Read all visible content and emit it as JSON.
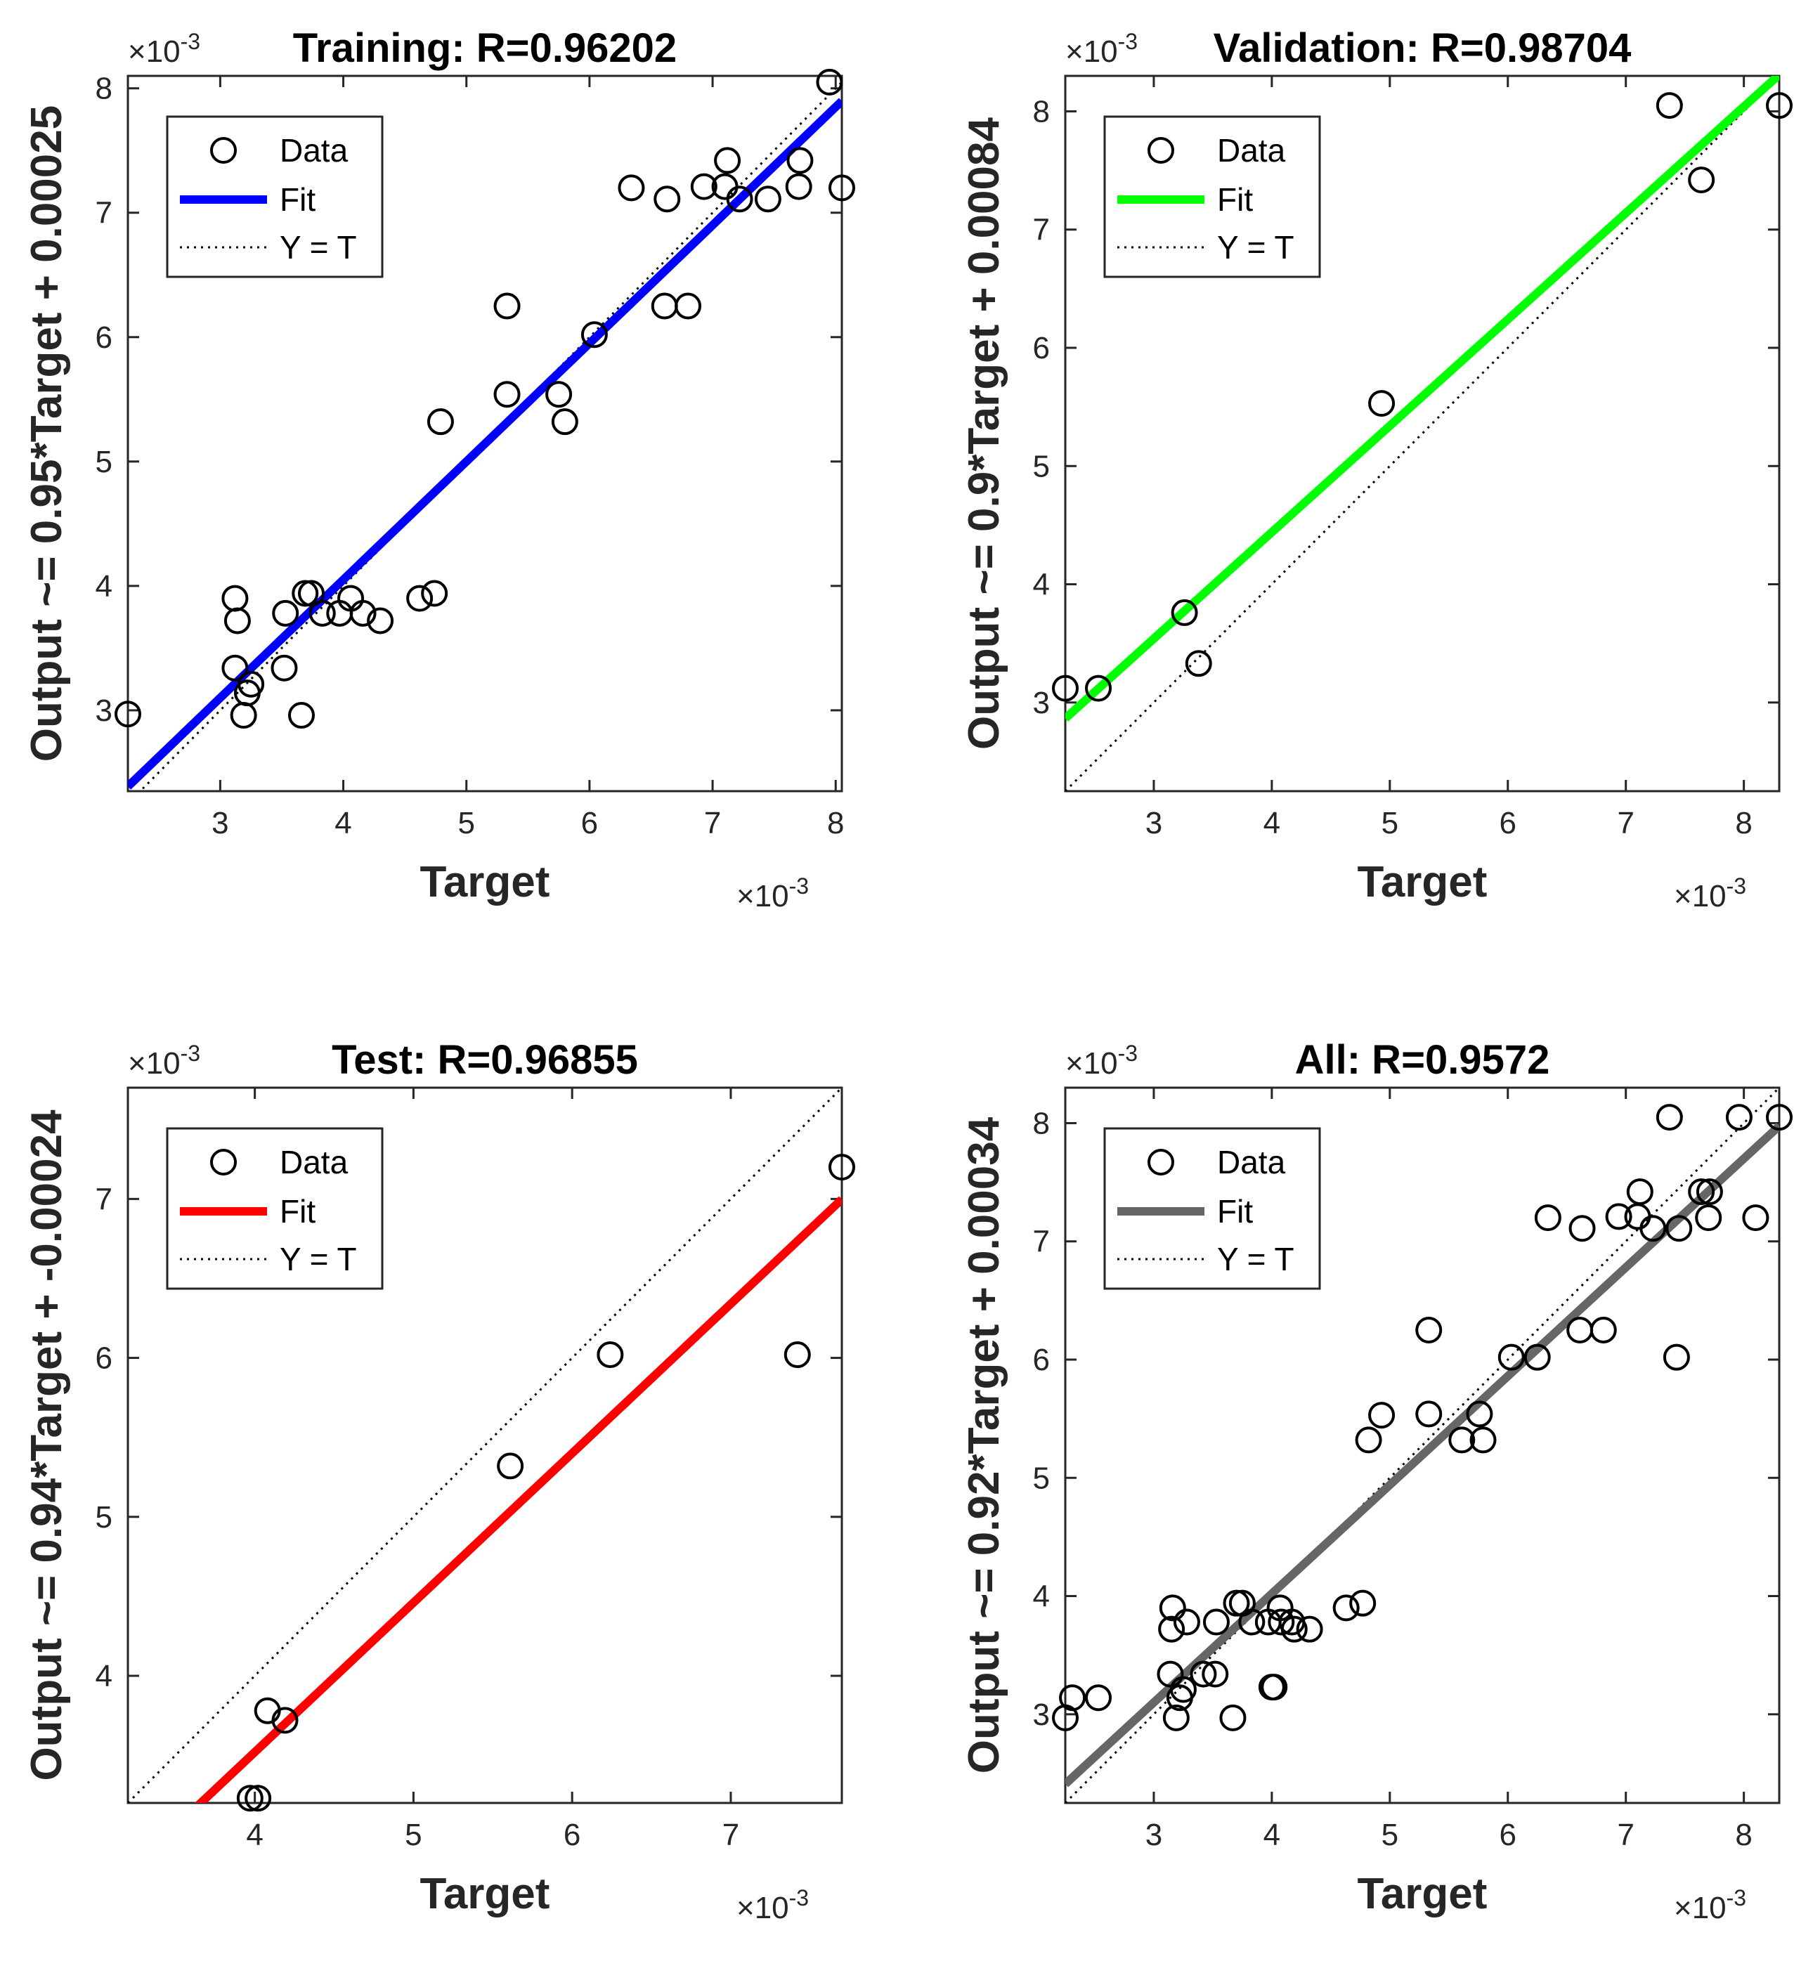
{
  "chart_data": [
    {
      "type": "scatter",
      "title": "Training: R=0.96202",
      "xlabel": "Target",
      "ylabel": "Output ~= 0.95*Target + 0.00025",
      "exponent_label": "×10",
      "exponent_power": "-3",
      "xlim": [
        2.25,
        8.05
      ],
      "ylim": [
        2.35,
        8.1
      ],
      "xticks": [
        3,
        4,
        5,
        6,
        7,
        8
      ],
      "yticks": [
        3,
        4,
        5,
        6,
        7,
        8
      ],
      "fit_color": "#0000ff",
      "fit": {
        "slope": 0.95,
        "intercept": 0.25
      },
      "legend": {
        "position": "top-left",
        "data": "Data",
        "fit": "Fit",
        "identity": "Y = T"
      },
      "points": [
        [
          2.25,
          2.97
        ],
        [
          3.12,
          3.34
        ],
        [
          3.12,
          3.9
        ],
        [
          3.14,
          3.72
        ],
        [
          3.19,
          2.96
        ],
        [
          3.22,
          3.14
        ],
        [
          3.25,
          3.21
        ],
        [
          3.52,
          3.34
        ],
        [
          3.53,
          3.78
        ],
        [
          3.66,
          2.96
        ],
        [
          3.69,
          3.94
        ],
        [
          3.74,
          3.94
        ],
        [
          3.83,
          3.78
        ],
        [
          3.97,
          3.78
        ],
        [
          4.06,
          3.9
        ],
        [
          4.16,
          3.78
        ],
        [
          4.3,
          3.72
        ],
        [
          4.62,
          3.9
        ],
        [
          4.74,
          3.94
        ],
        [
          4.79,
          5.32
        ],
        [
          5.33,
          5.54
        ],
        [
          5.33,
          6.25
        ],
        [
          5.75,
          5.54
        ],
        [
          5.8,
          5.32
        ],
        [
          6.04,
          6.02
        ],
        [
          6.34,
          7.2
        ],
        [
          6.61,
          6.25
        ],
        [
          6.63,
          7.11
        ],
        [
          6.8,
          6.25
        ],
        [
          6.93,
          7.21
        ],
        [
          7.1,
          7.21
        ],
        [
          7.12,
          7.42
        ],
        [
          7.22,
          7.11
        ],
        [
          7.45,
          7.11
        ],
        [
          7.7,
          7.21
        ],
        [
          7.71,
          7.42
        ],
        [
          7.95,
          8.05
        ],
        [
          8.05,
          7.2
        ]
      ]
    },
    {
      "type": "scatter",
      "title": "Validation: R=0.98704",
      "xlabel": "Target",
      "ylabel": "Output ~= 0.9*Target + 0.00084",
      "exponent_label": "×10",
      "exponent_power": "-3",
      "xlim": [
        2.25,
        8.3
      ],
      "ylim": [
        2.25,
        8.3
      ],
      "xticks": [
        3,
        4,
        5,
        6,
        7,
        8
      ],
      "yticks": [
        3,
        4,
        5,
        6,
        7,
        8
      ],
      "fit_color": "#00ff00",
      "fit": {
        "slope": 0.9,
        "intercept": 0.84
      },
      "legend": {
        "position": "top-left",
        "data": "Data",
        "fit": "Fit",
        "identity": "Y = T"
      },
      "points": [
        [
          2.25,
          3.12
        ],
        [
          2.53,
          3.12
        ],
        [
          3.26,
          3.76
        ],
        [
          3.38,
          3.33
        ],
        [
          4.93,
          5.53
        ],
        [
          7.37,
          8.05
        ],
        [
          7.64,
          7.42
        ],
        [
          8.3,
          8.05
        ]
      ]
    },
    {
      "type": "scatter",
      "title": "Test: R=0.96855",
      "xlabel": "Target",
      "ylabel": "Output ~= 0.94*Target + -0.00024",
      "exponent_label": "×10",
      "exponent_power": "-3",
      "xlim": [
        3.2,
        7.7
      ],
      "ylim": [
        3.2,
        7.7
      ],
      "xticks": [
        4,
        5,
        6,
        7
      ],
      "yticks": [
        4,
        5,
        6,
        7
      ],
      "fit_color": "#ff0000",
      "fit": {
        "slope": 0.94,
        "intercept": -0.24
      },
      "legend": {
        "position": "top-left",
        "data": "Data",
        "fit": "Fit",
        "identity": "Y = T"
      },
      "points": [
        [
          3.97,
          3.23
        ],
        [
          4.02,
          3.23
        ],
        [
          4.08,
          3.78
        ],
        [
          4.19,
          3.72
        ],
        [
          5.61,
          5.32
        ],
        [
          6.24,
          6.02
        ],
        [
          7.42,
          6.02
        ],
        [
          7.7,
          7.2
        ]
      ]
    },
    {
      "type": "scatter",
      "title": "All: R=0.9572",
      "xlabel": "Target",
      "ylabel": "Output ~= 0.92*Target + 0.00034",
      "exponent_label": "×10",
      "exponent_power": "-3",
      "xlim": [
        2.25,
        8.3
      ],
      "ylim": [
        2.25,
        8.3
      ],
      "xticks": [
        3,
        4,
        5,
        6,
        7,
        8
      ],
      "yticks": [
        3,
        4,
        5,
        6,
        7,
        8
      ],
      "fit_color": "#666666",
      "fit": {
        "slope": 0.92,
        "intercept": 0.34
      },
      "legend": {
        "position": "top-left",
        "data": "Data",
        "fit": "Fit",
        "identity": "Y = T"
      },
      "points": [
        [
          2.25,
          2.97
        ],
        [
          2.31,
          3.14
        ],
        [
          2.53,
          3.14
        ],
        [
          3.14,
          3.34
        ],
        [
          3.15,
          3.72
        ],
        [
          3.16,
          3.9
        ],
        [
          3.19,
          2.97
        ],
        [
          3.22,
          3.14
        ],
        [
          3.25,
          3.21
        ],
        [
          3.28,
          3.78
        ],
        [
          3.42,
          3.34
        ],
        [
          3.52,
          3.34
        ],
        [
          3.53,
          3.78
        ],
        [
          3.67,
          2.97
        ],
        [
          3.7,
          3.94
        ],
        [
          3.75,
          3.94
        ],
        [
          3.83,
          3.78
        ],
        [
          3.97,
          3.78
        ],
        [
          4.0,
          3.23
        ],
        [
          4.02,
          3.23
        ],
        [
          4.07,
          3.9
        ],
        [
          4.08,
          3.78
        ],
        [
          4.17,
          3.78
        ],
        [
          4.19,
          3.72
        ],
        [
          4.32,
          3.72
        ],
        [
          4.63,
          3.9
        ],
        [
          4.77,
          3.94
        ],
        [
          4.82,
          5.32
        ],
        [
          4.93,
          5.53
        ],
        [
          5.33,
          5.54
        ],
        [
          5.33,
          6.25
        ],
        [
          5.61,
          5.32
        ],
        [
          5.76,
          5.54
        ],
        [
          5.79,
          5.32
        ],
        [
          6.03,
          6.02
        ],
        [
          6.25,
          6.02
        ],
        [
          6.34,
          7.2
        ],
        [
          6.61,
          6.25
        ],
        [
          6.63,
          7.11
        ],
        [
          6.81,
          6.25
        ],
        [
          6.94,
          7.21
        ],
        [
          7.1,
          7.21
        ],
        [
          7.12,
          7.42
        ],
        [
          7.23,
          7.11
        ],
        [
          7.37,
          8.05
        ],
        [
          7.43,
          6.02
        ],
        [
          7.45,
          7.11
        ],
        [
          7.64,
          7.42
        ],
        [
          7.7,
          7.2
        ],
        [
          7.71,
          7.42
        ],
        [
          7.96,
          8.05
        ],
        [
          8.1,
          7.2
        ],
        [
          8.3,
          8.05
        ]
      ]
    }
  ]
}
